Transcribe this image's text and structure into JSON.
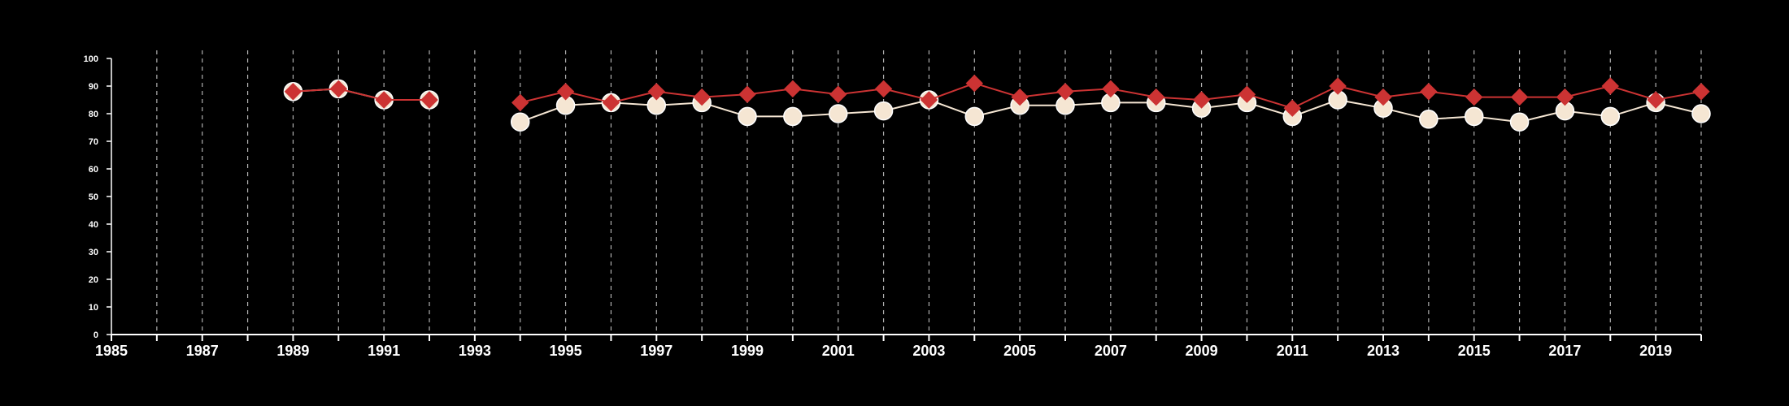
{
  "chart_data": {
    "type": "line",
    "title": "",
    "xlabel": "",
    "ylabel": "",
    "xlim": [
      1985,
      2020
    ],
    "ylim": [
      0,
      100
    ],
    "x_ticks": [
      1985,
      1987,
      1989,
      1991,
      1993,
      1995,
      1997,
      1999,
      2001,
      2003,
      2005,
      2007,
      2009,
      2011,
      2013,
      2015,
      2017,
      2019
    ],
    "y_ticks": [
      0,
      10,
      20,
      30,
      40,
      50,
      60,
      70,
      80,
      90,
      100
    ],
    "vertical_gridlines_every_year": true,
    "x": [
      1985,
      1986,
      1987,
      1988,
      1989,
      1990,
      1991,
      1992,
      1993,
      1994,
      1995,
      1996,
      1997,
      1998,
      1999,
      2000,
      2001,
      2002,
      2003,
      2004,
      2005,
      2006,
      2007,
      2008,
      2009,
      2010,
      2011,
      2012,
      2013,
      2014,
      2015,
      2016,
      2017,
      2018,
      2019,
      2020
    ],
    "series": [
      {
        "marker": "circle",
        "color": "#f5e6d3",
        "values": [
          null,
          null,
          null,
          null,
          88,
          89,
          85,
          85,
          null,
          77,
          83,
          84,
          83,
          84,
          79,
          79,
          80,
          81,
          85,
          79,
          83,
          83,
          84,
          84,
          82,
          84,
          79,
          85,
          82,
          78,
          79,
          77,
          81,
          79,
          84,
          80
        ]
      },
      {
        "marker": "diamond",
        "color": "#cc3333",
        "values": [
          null,
          null,
          null,
          null,
          88,
          89,
          85,
          85,
          null,
          84,
          88,
          84,
          88,
          86,
          87,
          89,
          87,
          89,
          85,
          91,
          86,
          88,
          89,
          86,
          85,
          87,
          82,
          90,
          86,
          88,
          86,
          86,
          86,
          90,
          85,
          88
        ]
      }
    ]
  }
}
